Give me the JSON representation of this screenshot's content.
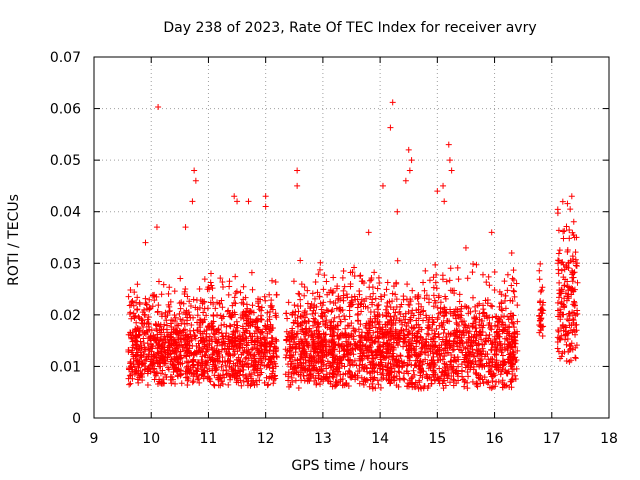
{
  "chart_data": {
    "type": "scatter",
    "title": "Day 238 of 2023, Rate Of TEC Index for receiver avry",
    "xlabel": "GPS time / hours",
    "ylabel": "ROTI / TECUs",
    "xlim": [
      9,
      18
    ],
    "ylim": [
      0,
      0.07
    ],
    "x_ticks": [
      9,
      10,
      11,
      12,
      13,
      14,
      15,
      16,
      17,
      18
    ],
    "y_ticks": [
      0,
      0.01,
      0.02,
      0.03,
      0.04,
      0.05,
      0.06,
      0.07
    ],
    "x_tick_labels": [
      "9",
      "10",
      "11",
      "12",
      "13",
      "14",
      "15",
      "16",
      "17",
      "18"
    ],
    "y_tick_labels": [
      "0",
      "0.01",
      "0.02",
      "0.03",
      "0.04",
      "0.05",
      "0.06",
      "0.07"
    ],
    "grid": true,
    "marker": "+",
    "marker_color": "#ff0000",
    "data_segments": [
      {
        "x_start": 9.6,
        "x_end": 12.2,
        "base": 0.011,
        "spread": 0.008
      },
      {
        "x_start": 12.35,
        "x_end": 16.4,
        "base": 0.011,
        "spread": 0.009
      },
      {
        "x_start": 16.78,
        "x_end": 16.85,
        "base": 0.018,
        "spread": 0.006
      },
      {
        "x_start": 17.1,
        "x_end": 17.45,
        "base": 0.018,
        "spread": 0.012
      }
    ],
    "highlight_points": [
      {
        "x": 10.12,
        "y": 0.0603
      },
      {
        "x": 10.75,
        "y": 0.048
      },
      {
        "x": 10.78,
        "y": 0.046
      },
      {
        "x": 10.72,
        "y": 0.042
      },
      {
        "x": 11.45,
        "y": 0.043
      },
      {
        "x": 11.5,
        "y": 0.042
      },
      {
        "x": 11.7,
        "y": 0.042
      },
      {
        "x": 12.0,
        "y": 0.043
      },
      {
        "x": 12.0,
        "y": 0.041
      },
      {
        "x": 12.55,
        "y": 0.048
      },
      {
        "x": 12.55,
        "y": 0.045
      },
      {
        "x": 14.22,
        "y": 0.0612
      },
      {
        "x": 14.18,
        "y": 0.0563
      },
      {
        "x": 14.05,
        "y": 0.045
      },
      {
        "x": 14.5,
        "y": 0.052
      },
      {
        "x": 14.55,
        "y": 0.05
      },
      {
        "x": 14.52,
        "y": 0.048
      },
      {
        "x": 14.45,
        "y": 0.046
      },
      {
        "x": 15.2,
        "y": 0.053
      },
      {
        "x": 15.22,
        "y": 0.05
      },
      {
        "x": 15.25,
        "y": 0.048
      },
      {
        "x": 15.1,
        "y": 0.045
      },
      {
        "x": 15.0,
        "y": 0.044
      },
      {
        "x": 15.12,
        "y": 0.042
      },
      {
        "x": 17.35,
        "y": 0.043
      },
      {
        "x": 17.4,
        "y": 0.035
      },
      {
        "x": 9.9,
        "y": 0.034
      },
      {
        "x": 10.1,
        "y": 0.037
      },
      {
        "x": 10.6,
        "y": 0.037
      },
      {
        "x": 13.8,
        "y": 0.036
      },
      {
        "x": 14.3,
        "y": 0.04
      },
      {
        "x": 15.95,
        "y": 0.036
      },
      {
        "x": 15.5,
        "y": 0.033
      },
      {
        "x": 16.3,
        "y": 0.032
      }
    ]
  }
}
